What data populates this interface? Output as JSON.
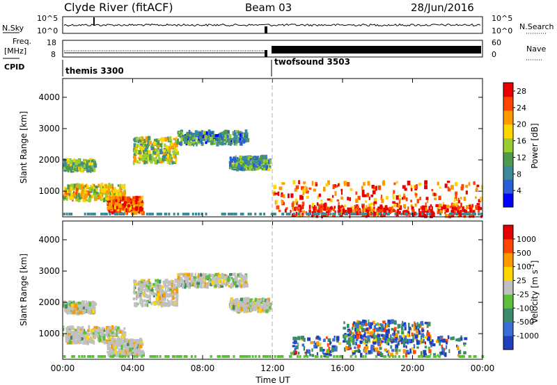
{
  "header": {
    "station": "Clyde River (fitACF)",
    "beam": "Beam 03",
    "date": "28/Jun/2016"
  },
  "noise_panel": {
    "left_label": "N.Sky",
    "right_label": "N.Search",
    "left_ticks": [
      "10^5",
      "10^0"
    ],
    "right_ticks": [
      "10^5",
      "10^0"
    ]
  },
  "freq_panel": {
    "left_label_1": "Freq.",
    "left_label_2": "[MHz]",
    "left_ticks": [
      "18",
      "8"
    ],
    "right_label": "Nave",
    "right_ticks": [
      "60",
      "0"
    ],
    "cpid_label": "CPID"
  },
  "cpid": [
    {
      "name": "themis 3300",
      "start_hour": 0
    },
    {
      "name": "twofsound 3503",
      "start_hour": 12
    }
  ],
  "chart_data": [
    {
      "type": "heatmap",
      "title": "",
      "xlabel": "Time UT",
      "ylabel": "Slant Range [km]",
      "xlim": [
        0,
        24
      ],
      "ylim": [
        180,
        4600
      ],
      "x_ticks": [
        "00:00",
        "04:00",
        "08:00",
        "12:00",
        "16:00",
        "20:00",
        "00:00"
      ],
      "y_ticks": [
        "1000",
        "2000",
        "3000",
        "4000"
      ],
      "colorbar": {
        "label": "Power [dB]",
        "ticks": [
          "4",
          "8",
          "12",
          "16",
          "20",
          "24",
          "28"
        ],
        "range": [
          0,
          30
        ],
        "colors": [
          "#0000ff",
          "#2a5fd8",
          "#3b8a9a",
          "#4f9a4f",
          "#9acd32",
          "#ffd700",
          "#ff9900",
          "#ff4500",
          "#e60000"
        ]
      },
      "echo_regions": [
        {
          "t": [
            0.0,
            1.8
          ],
          "r": [
            1650,
            2000
          ],
          "level": 0.45
        },
        {
          "t": [
            0.0,
            3.5
          ],
          "r": [
            700,
            1200
          ],
          "level": 0.6
        },
        {
          "t": [
            2.5,
            4.5
          ],
          "r": [
            300,
            800
          ],
          "level": 0.85
        },
        {
          "t": [
            4.0,
            6.5
          ],
          "r": [
            1900,
            2700
          ],
          "level": 0.5
        },
        {
          "t": [
            6.5,
            10.5
          ],
          "r": [
            2500,
            2900
          ],
          "level": 0.3
        },
        {
          "t": [
            9.5,
            11.8
          ],
          "r": [
            1700,
            2100
          ],
          "level": 0.35
        },
        {
          "t": [
            12.0,
            24.0
          ],
          "r": [
            300,
            1300
          ],
          "level": 0.8
        },
        {
          "t": [
            13.0,
            24.0
          ],
          "r": [
            200,
            500
          ],
          "level": 0.95
        }
      ]
    },
    {
      "type": "heatmap",
      "title": "",
      "xlabel": "Time UT",
      "ylabel": "Slant Range [km]",
      "xlim": [
        0,
        24
      ],
      "ylim": [
        180,
        4600
      ],
      "x_ticks": [
        "00:00",
        "04:00",
        "08:00",
        "12:00",
        "16:00",
        "20:00",
        "00:00"
      ],
      "y_ticks": [
        "1000",
        "2000",
        "3000",
        "4000"
      ],
      "colorbar": {
        "label": "Velocity [m s^-1]",
        "ticks": [
          "1000",
          "500",
          "100",
          "25",
          "-25",
          "-100",
          "-500",
          "-1000"
        ],
        "colors": [
          "#1f3fbf",
          "#3a6fd8",
          "#3b8a6a",
          "#5cbf3c",
          "#c0c0c0",
          "#ffd700",
          "#ff9900",
          "#ff4500",
          "#e60000"
        ]
      },
      "echo_regions": [
        {
          "t": [
            0.0,
            1.8
          ],
          "r": [
            1650,
            2000
          ],
          "level": 0.5
        },
        {
          "t": [
            0.0,
            3.5
          ],
          "r": [
            700,
            1200
          ],
          "level": 0.5
        },
        {
          "t": [
            2.5,
            4.5
          ],
          "r": [
            300,
            800
          ],
          "level": 0.5
        },
        {
          "t": [
            4.0,
            6.5
          ],
          "r": [
            1900,
            2700
          ],
          "level": 0.55
        },
        {
          "t": [
            6.5,
            10.5
          ],
          "r": [
            2500,
            2900
          ],
          "level": 0.5
        },
        {
          "t": [
            9.5,
            11.8
          ],
          "r": [
            1700,
            2100
          ],
          "level": 0.5
        },
        {
          "t": [
            13.0,
            23.0
          ],
          "r": [
            300,
            900
          ],
          "level": 0.25
        },
        {
          "t": [
            16.0,
            21.0
          ],
          "r": [
            700,
            1400
          ],
          "level": 0.1
        }
      ]
    }
  ]
}
